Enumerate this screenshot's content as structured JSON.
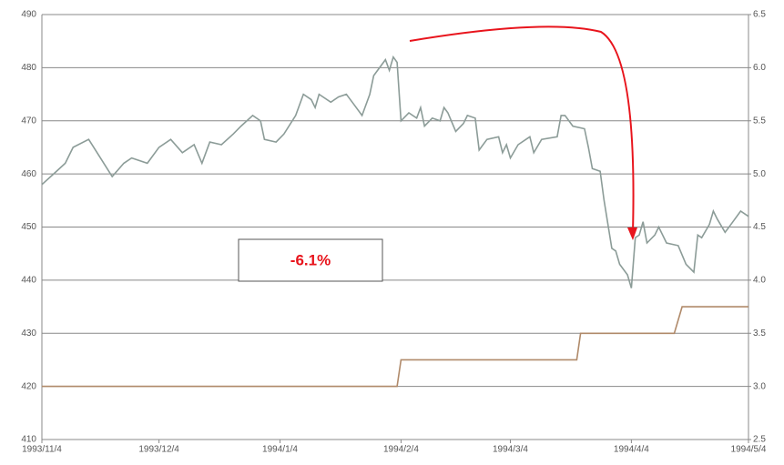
{
  "chart_data": {
    "type": "line",
    "annotations": [
      "-6.1%"
    ],
    "xlim": [
      "1993/11/4",
      "1994/5/4"
    ],
    "xticks": [
      "1993/11/4",
      "1993/12/4",
      "1994/1/4",
      "1994/2/4",
      "1994/3/4",
      "1994/4/4",
      "1994/5/4"
    ],
    "ylim": [
      410,
      490
    ],
    "yticks": [
      410,
      420,
      430,
      440,
      450,
      460,
      470,
      480,
      490
    ],
    "y2lim": [
      2.5,
      6.5
    ],
    "y2ticks": [
      2.5,
      {
        "value": 3,
        "label": "3.0"
      },
      3.5,
      {
        "value": 4,
        "label": "4.0"
      },
      4.5,
      {
        "value": 5,
        "label": "5.0"
      },
      5.5,
      {
        "value": 6,
        "label": "6.0"
      },
      6.5
    ],
    "grid": true,
    "series": [
      {
        "color": "#8c9c98",
        "x": [
          "1993/11/4",
          "1993/11/7",
          "1993/11/10",
          "1993/11/12",
          "1993/11/16",
          "1993/11/19",
          "1993/11/22",
          "1993/11/25",
          "1993/11/27",
          "1993/12/1",
          "1993/12/4",
          "1993/12/7",
          "1993/12/10",
          "1993/12/13",
          "1993/12/15",
          "1993/12/17",
          "1993/12/20",
          "1993/12/23",
          "1993/12/25",
          "1993/12/28",
          "1993/12/30",
          "1993/12/31",
          "1994/1/3",
          "1994/1/5",
          "1994/1/8",
          "1994/1/10",
          "1994/1/12",
          "1994/1/13",
          "1994/1/14",
          "1994/1/17",
          "1994/1/19",
          "1994/1/21",
          "1994/1/23",
          "1994/1/25",
          "1994/1/27",
          "1994/1/28",
          "1994/1/31",
          "1994/2/1",
          "1994/2/2",
          "1994/2/3",
          "1994/2/4",
          "1994/2/6",
          "1994/2/8",
          "1994/2/9",
          "1994/2/10",
          "1994/2/12",
          "1994/2/14",
          "1994/2/15",
          "1994/2/16",
          "1994/2/18",
          "1994/2/20",
          "1994/2/21",
          "1994/2/23",
          "1994/2/24",
          "1994/2/26",
          "1994/3/1",
          "1994/3/2",
          "1994/3/3",
          "1994/3/4",
          "1994/3/6",
          "1994/3/8",
          "1994/3/9",
          "1994/3/10",
          "1994/3/12",
          "1994/3/16",
          "1994/3/17",
          "1994/3/18",
          "1994/3/20",
          "1994/3/23",
          "1994/3/24",
          "1994/3/25",
          "1994/3/27",
          "1994/3/28",
          "1994/3/30",
          "1994/3/31",
          "1994/4/1",
          "1994/4/3",
          "1994/4/4",
          "1994/4/5",
          "1994/4/6",
          "1994/4/7",
          "1994/4/8",
          "1994/4/10",
          "1994/4/11",
          "1994/4/13",
          "1994/4/16",
          "1994/4/18",
          "1994/4/20",
          "1994/4/21",
          "1994/4/22",
          "1994/4/24",
          "1994/4/25",
          "1994/4/26",
          "1994/4/28",
          "1994/4/30",
          "1994/5/2",
          "1994/5/4"
        ],
        "values": [
          458,
          460,
          462,
          465,
          466.5,
          463,
          459.5,
          462,
          463,
          462,
          465,
          466.5,
          464,
          465.5,
          462,
          466,
          465.5,
          467.5,
          469,
          471,
          470,
          466.5,
          466,
          467.5,
          471,
          475,
          474,
          472.5,
          475,
          473.5,
          474.5,
          475,
          473,
          471,
          475,
          478.5,
          481.5,
          479.5,
          482,
          481,
          470,
          471.5,
          470.5,
          472.5,
          469,
          470.5,
          470,
          472.5,
          471.5,
          468,
          469.5,
          471,
          470.5,
          464.5,
          466.5,
          467,
          464,
          465.5,
          463,
          465.5,
          466.5,
          467,
          464,
          466.5,
          467,
          471,
          471,
          469,
          468.5,
          465,
          461,
          460.5,
          455,
          446,
          445.5,
          443,
          441,
          438.5,
          448,
          448.5,
          451,
          447,
          448.5,
          450,
          447,
          446.5,
          443,
          441.5,
          448.5,
          448,
          450.5,
          453,
          451.5,
          449,
          451,
          453,
          452
        ]
      },
      {
        "color": "#b08a6a",
        "axis": "y2",
        "x": [
          "1993/11/4",
          "1994/2/3",
          "1994/2/4",
          "1994/3/21",
          "1994/3/22",
          "1994/4/15",
          "1994/4/17",
          "1994/5/4"
        ],
        "values": [
          3,
          3,
          3.25,
          3.25,
          3.5,
          3.5,
          3.75,
          3.75
        ]
      }
    ]
  }
}
